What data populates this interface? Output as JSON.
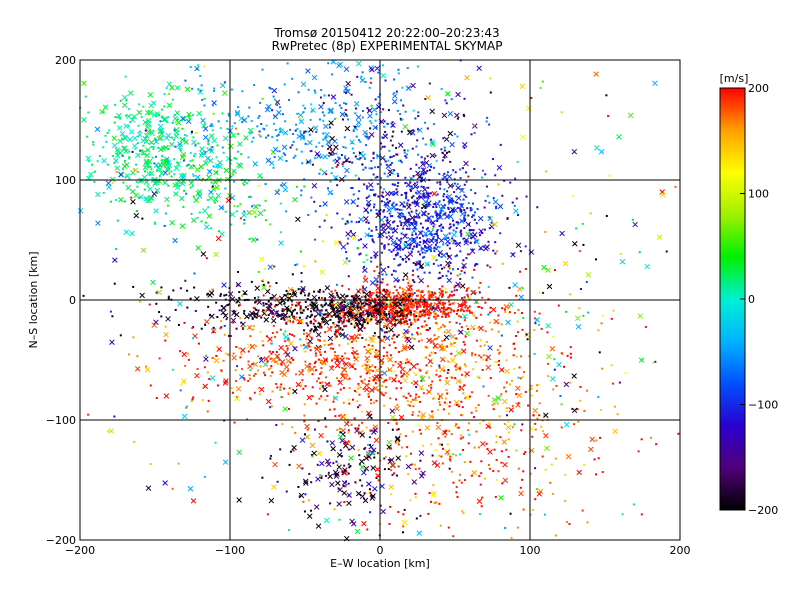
{
  "chart_data": {
    "type": "scatter",
    "title": "Tromsø 20150412 20:22:00–20:23:43",
    "subtitle": "RwPretec (8p) EXPERIMENTAL SKYMAP",
    "xlabel": "E–W location [km]",
    "ylabel": "N–S location [km]",
    "xlim": [
      -200,
      200
    ],
    "ylim": [
      -200,
      200
    ],
    "x_ticks": [
      -200,
      -100,
      0,
      100,
      200
    ],
    "y_ticks": [
      -200,
      -100,
      0,
      100,
      200
    ],
    "grid": true,
    "colorbar": {
      "label": "[m/s]",
      "range": [
        -200,
        200
      ],
      "ticks": [
        200,
        100,
        0,
        -100,
        -200
      ],
      "colors": [
        "#000000",
        "#50007a",
        "#2a00d0",
        "#0050ff",
        "#00b4ff",
        "#00f0d0",
        "#00f000",
        "#a0f000",
        "#ffff00",
        "#ffa000",
        "#ff0000"
      ]
    },
    "markers": [
      "dot",
      "cross"
    ],
    "clusters": [
      {
        "x": -150,
        "y": 125,
        "sx": 25,
        "sy": 25,
        "vel": 15,
        "vsd": 20,
        "n": 380,
        "cross": 0.55
      },
      {
        "x": -105,
        "y": 95,
        "sx": 20,
        "sy": 20,
        "vel": 30,
        "vsd": 20,
        "n": 80,
        "cross": 0.4
      },
      {
        "x": -45,
        "y": 140,
        "sx": 45,
        "sy": 30,
        "vel": -55,
        "vsd": 15,
        "n": 380,
        "cross": 0.25
      },
      {
        "x": 30,
        "y": 65,
        "sx": 25,
        "sy": 25,
        "vel": -110,
        "vsd": 30,
        "n": 750,
        "cross": 0.2
      },
      {
        "x": 5,
        "y": 135,
        "sx": 30,
        "sy": 30,
        "vel": -150,
        "vsd": 35,
        "n": 150,
        "cross": 0.25
      },
      {
        "x": 20,
        "y": -5,
        "sx": 25,
        "sy": 8,
        "vel": 195,
        "vsd": 15,
        "n": 550,
        "cross": 0.1
      },
      {
        "x": -20,
        "y": -10,
        "sx": 25,
        "sy": 8,
        "vel": -195,
        "vsd": 15,
        "n": 350,
        "cross": 0.15
      },
      {
        "x": -75,
        "y": -5,
        "sx": 40,
        "sy": 10,
        "vel": -190,
        "vsd": 20,
        "n": 200,
        "cross": 0.3
      },
      {
        "x": -30,
        "y": -50,
        "sx": 55,
        "sy": 28,
        "vel": 185,
        "vsd": 25,
        "n": 620,
        "cross": 0.2
      },
      {
        "x": 50,
        "y": -70,
        "sx": 50,
        "sy": 40,
        "vel": 175,
        "vsd": 30,
        "n": 450,
        "cross": 0.15
      },
      {
        "x": -20,
        "y": -140,
        "sx": 25,
        "sy": 20,
        "vel": -170,
        "vsd": 30,
        "n": 150,
        "cross": 0.45
      },
      {
        "x": 60,
        "y": -150,
        "sx": 60,
        "sy": 30,
        "vel": 180,
        "vsd": 30,
        "n": 150,
        "cross": 0.2
      },
      {
        "x": 0,
        "y": 0,
        "sx": 120,
        "sy": 120,
        "vel": 0,
        "vsd": 140,
        "n": 550,
        "cross": 0.45
      }
    ]
  }
}
